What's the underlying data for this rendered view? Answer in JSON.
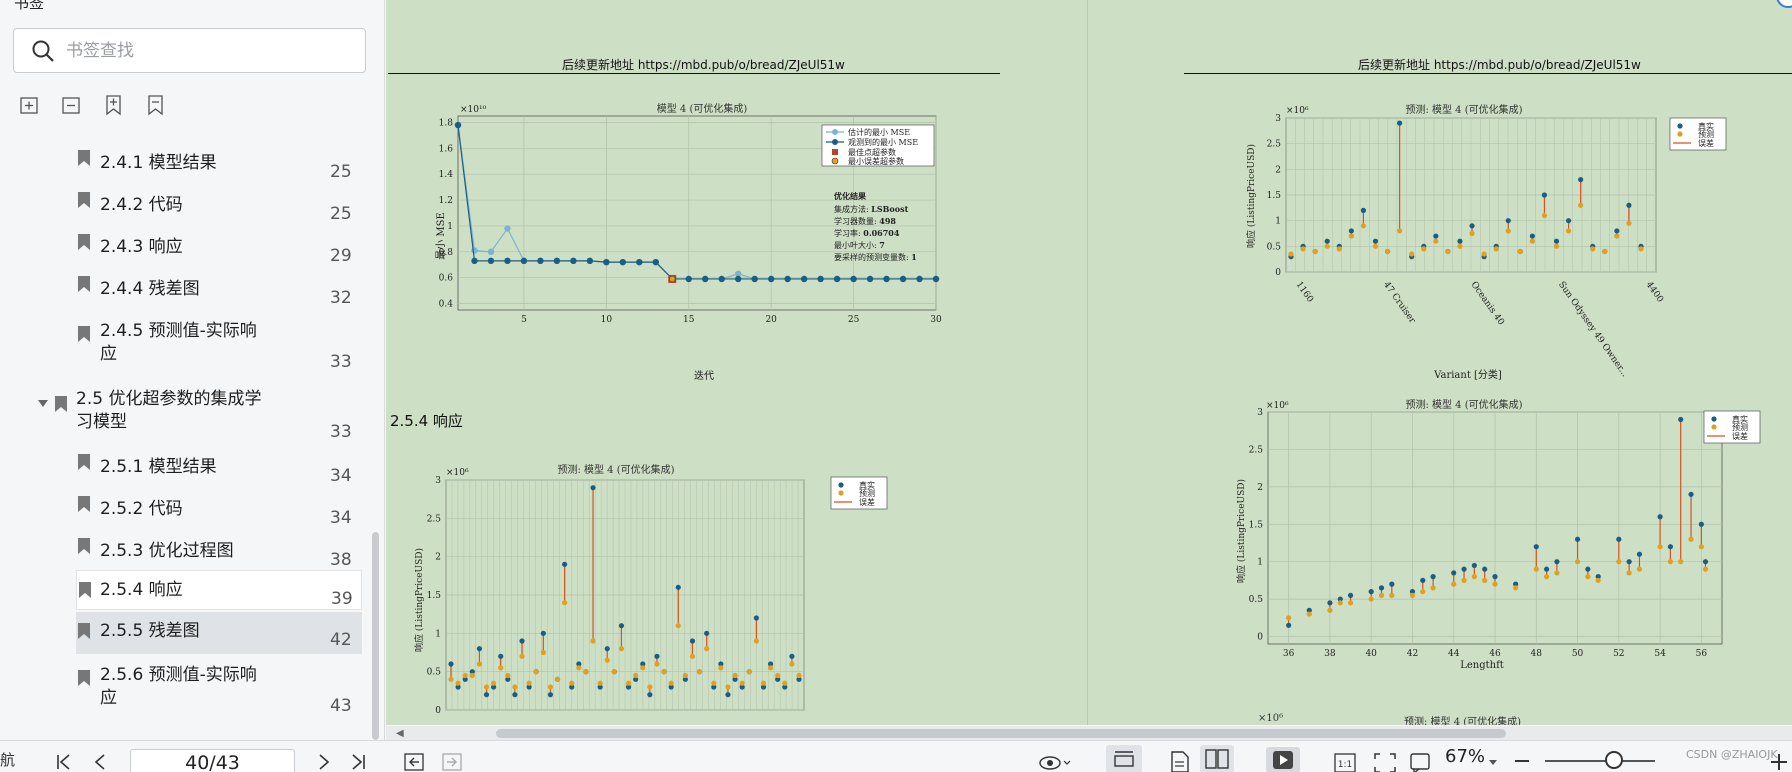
{
  "sidebar": {
    "title": "书签",
    "search_placeholder": "书签查找",
    "items": [
      {
        "label": "2.4.1 模型结果",
        "page": "25"
      },
      {
        "label": "2.4.2 代码",
        "page": "25"
      },
      {
        "label": "2.4.3 响应",
        "page": "29"
      },
      {
        "label": "2.4.4 残差图",
        "page": "32"
      },
      {
        "label": "2.4.5 预测值-实际响",
        "label2": "应",
        "page": "33"
      },
      {
        "label": "2.5 优化超参数的集成学",
        "label2": "习模型",
        "page": "33"
      },
      {
        "label": "2.5.1 模型结果",
        "page": "34"
      },
      {
        "label": "2.5.2 代码",
        "page": "34"
      },
      {
        "label": "2.5.3 优化过程图",
        "page": "38"
      },
      {
        "label": "2.5.4 响应",
        "page": "39"
      },
      {
        "label": "2.5.5 残差图",
        "page": "42"
      },
      {
        "label": "2.5.6 预测值-实际响",
        "label2": "应",
        "page": "43"
      }
    ]
  },
  "document": {
    "header_left": "后续更新地址 https://mbd.pub/o/bread/ZJeUl51w",
    "header_right": "后续更新地址 https://mbd.pub/o/bread/ZJeUl51w",
    "section_title": "2.5.4 响应",
    "next_plot_title": "预测: 模型 4 (可优化集成)",
    "next_plot_exp": "×10⁶"
  },
  "toolbar": {
    "nav_label": "航",
    "page_indicator": "40/43",
    "zoom": "67%",
    "watermark": "CSDN @ZHAIOJK"
  },
  "chart_data": [
    {
      "type": "line",
      "title": "模型 4 (可优化集成)",
      "xlabel": "迭代",
      "ylabel": "最小 MSE",
      "y_exponent": "×10¹⁰",
      "xlim": [
        1,
        30
      ],
      "ylim": [
        0.35,
        1.85
      ],
      "xticks": [
        5,
        10,
        15,
        20,
        25,
        30
      ],
      "yticks": [
        0.4,
        0.6,
        0.8,
        1,
        1.2,
        1.4,
        1.6,
        1.8
      ],
      "grid": true,
      "legend_position": "top-right",
      "series": [
        {
          "name": "估计的最小 MSE",
          "x": [
            1,
            2,
            3,
            4,
            5,
            6,
            7,
            8,
            9,
            10,
            11,
            12,
            13,
            14,
            15,
            16,
            17,
            18,
            19,
            20,
            21,
            22,
            23,
            24,
            25,
            26,
            27,
            28,
            29,
            30
          ],
          "values": [
            1.78,
            0.81,
            0.8,
            0.98,
            0.73,
            0.73,
            0.73,
            0.73,
            0.73,
            0.72,
            0.72,
            0.72,
            0.72,
            0.59,
            0.59,
            0.59,
            0.59,
            0.63,
            0.59,
            0.59,
            0.59,
            0.59,
            0.59,
            0.59,
            0.59,
            0.59,
            0.59,
            0.59,
            0.59,
            0.59
          ]
        },
        {
          "name": "观测到的最小 MSE",
          "x": [
            1,
            2,
            3,
            4,
            5,
            6,
            7,
            8,
            9,
            10,
            11,
            12,
            13,
            14,
            15,
            16,
            17,
            18,
            19,
            20,
            21,
            22,
            23,
            24,
            25,
            26,
            27,
            28,
            29,
            30
          ],
          "values": [
            1.78,
            0.73,
            0.73,
            0.73,
            0.73,
            0.73,
            0.73,
            0.73,
            0.73,
            0.72,
            0.72,
            0.72,
            0.72,
            0.59,
            0.59,
            0.59,
            0.59,
            0.59,
            0.59,
            0.59,
            0.59,
            0.59,
            0.59,
            0.59,
            0.59,
            0.59,
            0.59,
            0.59,
            0.59,
            0.59
          ]
        }
      ],
      "markers": [
        {
          "name": "最佳点超参数",
          "x": 14,
          "value": 0.59
        },
        {
          "name": "最小误差超参数",
          "x": 14,
          "value": 0.59
        }
      ],
      "annotation": {
        "heading": "优化结果",
        "lines": [
          {
            "label": "集成方法: ",
            "value": "LSBoost"
          },
          {
            "label": "学习器数量: ",
            "value": "498"
          },
          {
            "label": "学习率: ",
            "value": "0.06704"
          },
          {
            "label": "最小叶大小: ",
            "value": "7"
          },
          {
            "label": "要采样的预测变量数: ",
            "value": "1"
          }
        ]
      }
    },
    {
      "type": "scatter",
      "title": "预测: 模型 4 (可优化集成)",
      "ylabel": "响应 (ListingPriceUSD)",
      "y_exponent": "×10⁶",
      "ylim": [
        0,
        3
      ],
      "yticks": [
        0,
        0.5,
        1,
        1.5,
        2,
        2.5,
        3
      ],
      "legend_position": "top-right",
      "series": [
        {
          "name": "真实"
        },
        {
          "name": "预测"
        },
        {
          "name": "误差"
        }
      ],
      "x": [
        1,
        3,
        5,
        7,
        9,
        11,
        13,
        15,
        17,
        19,
        21,
        23,
        25,
        27,
        29,
        31,
        33,
        35,
        37,
        39,
        41,
        43,
        45,
        47,
        49,
        51,
        53,
        55,
        57,
        59,
        61,
        63,
        65,
        67,
        69,
        71,
        73,
        75,
        77,
        79,
        81,
        83,
        85,
        87,
        89,
        91,
        93,
        95,
        97,
        99
      ],
      "true_values": [
        0.6,
        0.3,
        0.4,
        0.5,
        0.8,
        0.2,
        0.3,
        0.7,
        0.4,
        0.2,
        0.9,
        0.3,
        0.5,
        1.0,
        0.2,
        0.4,
        1.9,
        0.3,
        0.6,
        0.5,
        2.9,
        0.3,
        0.8,
        0.5,
        1.1,
        0.3,
        0.4,
        0.6,
        0.2,
        0.7,
        0.5,
        0.3,
        1.6,
        0.4,
        0.9,
        0.5,
        1.0,
        0.3,
        0.6,
        0.2,
        0.4,
        0.3,
        0.5,
        1.2,
        0.3,
        0.6,
        0.4,
        0.3,
        0.7,
        0.4
      ],
      "predicted_values": [
        0.4,
        0.35,
        0.45,
        0.45,
        0.6,
        0.3,
        0.35,
        0.55,
        0.45,
        0.3,
        0.7,
        0.35,
        0.5,
        0.75,
        0.3,
        0.4,
        1.4,
        0.35,
        0.55,
        0.5,
        0.9,
        0.35,
        0.65,
        0.5,
        0.8,
        0.35,
        0.45,
        0.55,
        0.3,
        0.6,
        0.5,
        0.35,
        1.1,
        0.45,
        0.7,
        0.5,
        0.8,
        0.35,
        0.55,
        0.3,
        0.45,
        0.35,
        0.5,
        0.9,
        0.35,
        0.55,
        0.45,
        0.35,
        0.6,
        0.45
      ]
    },
    {
      "type": "scatter",
      "title": "预测: 模型 4 (可优化集成)",
      "xlabel": "Variant [分类]",
      "ylabel": "响应 (ListingPriceUSD)",
      "y_exponent": "×10⁶",
      "ylim": [
        0,
        3
      ],
      "yticks": [
        0,
        0.5,
        1,
        1.5,
        2,
        2.5,
        3
      ],
      "xtick_labels": [
        "1160",
        "47 Cruiser",
        "Oceanis 40",
        "Sun Odyssey 49 Owner...",
        "4400"
      ],
      "legend_position": "top-right",
      "series": [
        {
          "name": "真实"
        },
        {
          "name": "预测"
        },
        {
          "name": "误差"
        }
      ],
      "x": [
        1,
        3,
        5,
        7,
        9,
        11,
        13,
        15,
        17,
        19,
        21,
        23,
        25,
        27,
        29,
        31,
        33,
        35,
        37,
        39,
        41,
        43,
        45,
        47,
        49,
        51,
        53,
        55,
        57,
        59
      ],
      "true_values": [
        0.3,
        0.5,
        0.4,
        0.6,
        0.5,
        0.8,
        1.2,
        0.6,
        0.4,
        2.9,
        0.3,
        0.5,
        0.7,
        0.4,
        0.6,
        0.9,
        0.3,
        0.5,
        1.0,
        0.4,
        0.7,
        1.5,
        0.6,
        1.0,
        1.8,
        0.5,
        0.4,
        0.8,
        1.3,
        0.5
      ],
      "predicted_values": [
        0.35,
        0.45,
        0.4,
        0.5,
        0.45,
        0.7,
        0.9,
        0.5,
        0.4,
        0.8,
        0.35,
        0.45,
        0.6,
        0.4,
        0.5,
        0.75,
        0.35,
        0.45,
        0.8,
        0.4,
        0.6,
        1.1,
        0.5,
        0.8,
        1.3,
        0.45,
        0.4,
        0.7,
        0.95,
        0.45
      ]
    },
    {
      "type": "scatter",
      "title": "预测: 模型 4 (可优化集成)",
      "xlabel": "Lengthft",
      "ylabel": "响应 (ListingPriceUSD)",
      "y_exponent": "×10⁶",
      "xlim": [
        35,
        57
      ],
      "ylim": [
        -0.1,
        3
      ],
      "xticks": [
        36,
        38,
        40,
        42,
        44,
        46,
        48,
        50,
        52,
        54,
        56
      ],
      "yticks": [
        0,
        0.5,
        1,
        1.5,
        2,
        2.5,
        3
      ],
      "legend_position": "top-right",
      "series": [
        {
          "name": "真实"
        },
        {
          "name": "预测"
        },
        {
          "name": "误差"
        }
      ],
      "x": [
        36,
        37,
        38,
        38.5,
        39,
        40,
        40.5,
        41,
        42,
        42.5,
        43,
        44,
        44.5,
        45,
        45.5,
        46,
        47,
        48,
        48.5,
        49,
        50,
        50.5,
        51,
        52,
        52.5,
        53,
        54,
        54.5,
        55,
        55.5,
        56,
        56.2
      ],
      "true_values": [
        0.15,
        0.35,
        0.45,
        0.5,
        0.55,
        0.6,
        0.65,
        0.7,
        0.6,
        0.75,
        0.8,
        0.85,
        0.9,
        0.95,
        0.9,
        0.8,
        0.7,
        1.2,
        0.9,
        1.0,
        1.3,
        0.9,
        0.8,
        1.3,
        1.0,
        1.1,
        1.6,
        1.2,
        2.9,
        1.9,
        1.5,
        1.0
      ],
      "predicted_values": [
        0.25,
        0.3,
        0.35,
        0.45,
        0.45,
        0.5,
        0.55,
        0.55,
        0.55,
        0.6,
        0.65,
        0.7,
        0.75,
        0.8,
        0.75,
        0.7,
        0.65,
        0.9,
        0.8,
        0.85,
        1.0,
        0.8,
        0.75,
        1.0,
        0.85,
        0.9,
        1.2,
        1.0,
        1.0,
        1.3,
        1.2,
        0.9
      ]
    }
  ]
}
